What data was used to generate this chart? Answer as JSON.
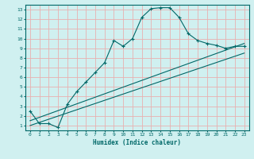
{
  "title": "",
  "xlabel": "Humidex (Indice chaleur)",
  "ylabel": "",
  "bg_color": "#d0f0f0",
  "grid_color": "#e8b0b0",
  "line_color": "#006868",
  "xlim": [
    -0.5,
    23.5
  ],
  "ylim": [
    0.5,
    13.5
  ],
  "xticks": [
    0,
    1,
    2,
    3,
    4,
    5,
    6,
    7,
    8,
    9,
    10,
    11,
    12,
    13,
    14,
    15,
    16,
    17,
    18,
    19,
    20,
    21,
    22,
    23
  ],
  "yticks": [
    1,
    2,
    3,
    4,
    5,
    6,
    7,
    8,
    9,
    10,
    11,
    12,
    13
  ],
  "curve_x": [
    0,
    1,
    2,
    3,
    4,
    5,
    6,
    7,
    8,
    9,
    10,
    11,
    12,
    13,
    14,
    15,
    16,
    17,
    18,
    19,
    20,
    21,
    22,
    23
  ],
  "curve_y": [
    2.5,
    1.2,
    1.2,
    0.8,
    3.2,
    4.5,
    5.5,
    6.5,
    7.5,
    9.8,
    9.2,
    10.0,
    12.2,
    13.1,
    13.2,
    13.2,
    12.2,
    10.5,
    9.8,
    9.5,
    9.3,
    9.0,
    9.2,
    9.2
  ],
  "line1_x": [
    0,
    23
  ],
  "line1_y": [
    1.5,
    9.5
  ],
  "line2_x": [
    0,
    23
  ],
  "line2_y": [
    1.0,
    8.5
  ]
}
